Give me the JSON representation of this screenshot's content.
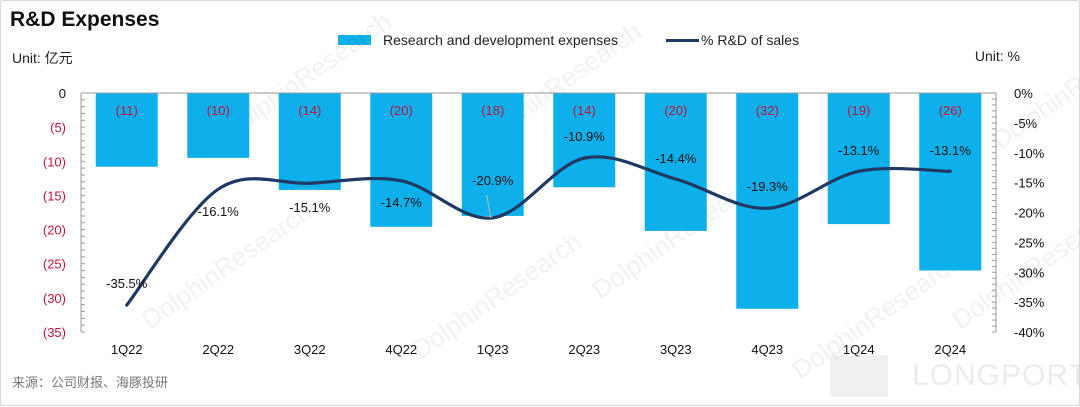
{
  "title": "R&D Expenses",
  "unit_left": "Unit: 亿元",
  "unit_right": "Unit:  %",
  "source": "来源：公司财报、海豚投研",
  "logo_text": "LONGPORT",
  "watermark_text": "DolphinResearch",
  "colors": {
    "bar": "#0eb0ec",
    "line": "#1f3864",
    "bar_label": "#c0143c",
    "neg_tick": "#c0143c"
  },
  "legend": {
    "bar_label": "Research and development expenses",
    "line_label": "% R&D of sales"
  },
  "chart_data": {
    "type": "bar+line",
    "title": "R&D Expenses",
    "categories": [
      "1Q22",
      "2Q22",
      "3Q22",
      "4Q22",
      "1Q23",
      "2Q23",
      "3Q23",
      "4Q23",
      "1Q24",
      "2Q24"
    ],
    "series": [
      {
        "name": "Research and development expenses",
        "type": "bar",
        "axis": "left",
        "values": [
          -10.8,
          -9.5,
          -14.2,
          -19.6,
          -18.0,
          -13.8,
          -20.2,
          -31.6,
          -19.2,
          -26.0
        ],
        "labels": [
          "(11)",
          "(10)",
          "(14)",
          "(20)",
          "(18)",
          "(14)",
          "(20)",
          "(32)",
          "(19)",
          "(26)"
        ]
      },
      {
        "name": "% R&D of sales",
        "type": "line",
        "axis": "right",
        "smooth": true,
        "values": [
          -35.5,
          -16.1,
          -15.1,
          -14.7,
          -20.9,
          -10.9,
          -14.4,
          -19.3,
          -13.1,
          -13.1
        ],
        "labels": [
          "-35.5%",
          "-16.1%",
          "-15.1%",
          "-14.7%",
          "-20.9%",
          "-10.9%",
          "-14.4%",
          "-19.3%",
          "-13.1%",
          "-13.1%"
        ]
      }
    ],
    "left_axis": {
      "unit": "亿元",
      "range": [
        -35,
        0
      ],
      "ticks": [
        0,
        -5,
        -10,
        -15,
        -20,
        -25,
        -30,
        -35
      ],
      "tick_labels": [
        "0",
        "(5)",
        "(10)",
        "(15)",
        "(20)",
        "(25)",
        "(30)",
        "(35)"
      ]
    },
    "right_axis": {
      "unit": "%",
      "range": [
        -40,
        0
      ],
      "ticks": [
        0,
        -5,
        -10,
        -15,
        -20,
        -25,
        -30,
        -35,
        -40
      ],
      "tick_labels": [
        "0%",
        "-5%",
        "-10%",
        "-15%",
        "-20%",
        "-25%",
        "-30%",
        "-35%",
        "-40%"
      ]
    },
    "grid": false,
    "legend_position": "top-center"
  }
}
